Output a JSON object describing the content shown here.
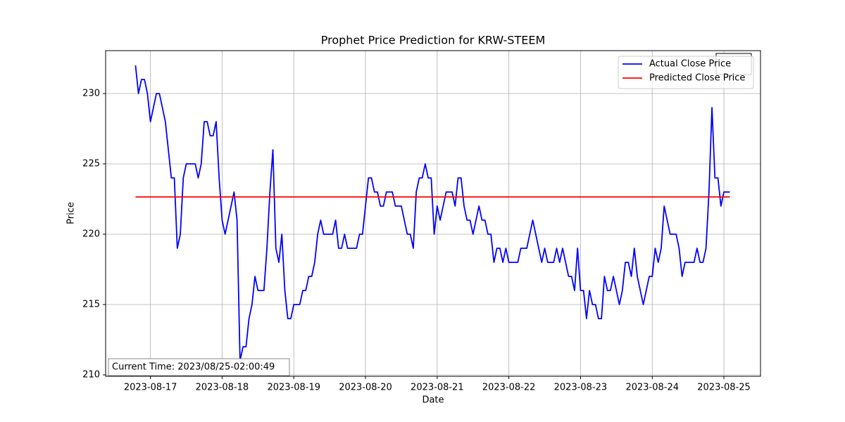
{
  "chart_data": {
    "type": "line",
    "title": "Prophet Price Prediction for KRW-STEEM",
    "x_label": "Date",
    "y_label": "Price",
    "annotation": "Current Time: 2023/08/25-02:00:49",
    "legend": "upper right",
    "grid": true,
    "xlim": [
      "2023-08-16 09:00",
      "2023-08-25 12:15"
    ],
    "xticks": [
      "2023-08-17",
      "2023-08-18",
      "2023-08-19",
      "2023-08-20",
      "2023-08-21",
      "2023-08-22",
      "2023-08-23",
      "2023-08-24",
      "2023-08-25"
    ],
    "ylim": [
      209.9,
      233.05
    ],
    "yticks": [
      210,
      215,
      220,
      225,
      230
    ],
    "series": [
      {
        "name": "Actual Close Price",
        "color": "#0000ff",
        "x": [
          "2023-08-16 19:00",
          "2023-08-16 20:00",
          "2023-08-16 21:00",
          "2023-08-16 22:00",
          "2023-08-16 23:00",
          "2023-08-17 00:00",
          "2023-08-17 02:00",
          "2023-08-17 03:00",
          "2023-08-17 05:00",
          "2023-08-17 07:00",
          "2023-08-17 08:00",
          "2023-08-17 09:00",
          "2023-08-17 10:00",
          "2023-08-17 11:00",
          "2023-08-17 12:00",
          "2023-08-17 15:00",
          "2023-08-17 16:00",
          "2023-08-17 17:00",
          "2023-08-17 18:00",
          "2023-08-17 19:00",
          "2023-08-17 20:00",
          "2023-08-17 21:00",
          "2023-08-17 22:00",
          "2023-08-17 23:00",
          "2023-08-18 00:00",
          "2023-08-18 01:00",
          "2023-08-18 04:00",
          "2023-08-18 05:00",
          "2023-08-18 06:00",
          "2023-08-18 07:00",
          "2023-08-18 08:00",
          "2023-08-18 09:00",
          "2023-08-18 10:00",
          "2023-08-18 11:00",
          "2023-08-18 12:00",
          "2023-08-18 14:00",
          "2023-08-18 15:00",
          "2023-08-18 16:00",
          "2023-08-18 17:00",
          "2023-08-18 18:00",
          "2023-08-18 19:00",
          "2023-08-18 20:00",
          "2023-08-18 21:00",
          "2023-08-18 22:00",
          "2023-08-18 23:00",
          "2023-08-19 00:00",
          "2023-08-19 02:00",
          "2023-08-19 03:00",
          "2023-08-19 04:00",
          "2023-08-19 05:00",
          "2023-08-19 06:00",
          "2023-08-19 07:00",
          "2023-08-19 08:00",
          "2023-08-19 09:00",
          "2023-08-19 10:00",
          "2023-08-19 13:00",
          "2023-08-19 14:00",
          "2023-08-19 15:00",
          "2023-08-19 16:00",
          "2023-08-19 17:00",
          "2023-08-19 18:00",
          "2023-08-19 21:00",
          "2023-08-19 22:00",
          "2023-08-19 23:00",
          "2023-08-20 00:00",
          "2023-08-20 01:00",
          "2023-08-20 02:00",
          "2023-08-20 03:00",
          "2023-08-20 04:00",
          "2023-08-20 05:00",
          "2023-08-20 06:00",
          "2023-08-20 07:00",
          "2023-08-20 09:00",
          "2023-08-20 10:00",
          "2023-08-20 12:00",
          "2023-08-20 13:00",
          "2023-08-20 14:00",
          "2023-08-20 15:00",
          "2023-08-20 16:00",
          "2023-08-20 17:00",
          "2023-08-20 18:00",
          "2023-08-20 19:00",
          "2023-08-20 20:00",
          "2023-08-20 21:00",
          "2023-08-20 22:00",
          "2023-08-20 23:00",
          "2023-08-21 00:00",
          "2023-08-21 01:00",
          "2023-08-21 03:00",
          "2023-08-21 05:00",
          "2023-08-21 06:00",
          "2023-08-21 07:00",
          "2023-08-21 08:00",
          "2023-08-21 09:00",
          "2023-08-21 10:00",
          "2023-08-21 11:00",
          "2023-08-21 12:00",
          "2023-08-21 14:00",
          "2023-08-21 15:00",
          "2023-08-21 16:00",
          "2023-08-21 17:00",
          "2023-08-21 18:00",
          "2023-08-21 19:00",
          "2023-08-21 20:00",
          "2023-08-21 21:00",
          "2023-08-21 22:00",
          "2023-08-21 23:00",
          "2023-08-22 00:00",
          "2023-08-22 03:00",
          "2023-08-22 04:00",
          "2023-08-22 06:00",
          "2023-08-22 08:00",
          "2023-08-22 11:00",
          "2023-08-22 12:00",
          "2023-08-22 13:00",
          "2023-08-22 15:00",
          "2023-08-22 16:00",
          "2023-08-22 17:00",
          "2023-08-22 18:00",
          "2023-08-22 20:00",
          "2023-08-22 21:00",
          "2023-08-22 22:00",
          "2023-08-22 23:00",
          "2023-08-23 00:00",
          "2023-08-23 01:00",
          "2023-08-23 02:00",
          "2023-08-23 03:00",
          "2023-08-23 04:00",
          "2023-08-23 05:00",
          "2023-08-23 06:00",
          "2023-08-23 07:00",
          "2023-08-23 08:00",
          "2023-08-23 09:00",
          "2023-08-23 10:00",
          "2023-08-23 11:00",
          "2023-08-23 13:00",
          "2023-08-23 14:00",
          "2023-08-23 15:00",
          "2023-08-23 16:00",
          "2023-08-23 17:00",
          "2023-08-23 18:00",
          "2023-08-23 19:00",
          "2023-08-23 21:00",
          "2023-08-23 23:00",
          "2023-08-24 00:00",
          "2023-08-24 01:00",
          "2023-08-24 02:00",
          "2023-08-24 03:00",
          "2023-08-24 04:00",
          "2023-08-24 06:00",
          "2023-08-24 08:00",
          "2023-08-24 09:00",
          "2023-08-24 10:00",
          "2023-08-24 11:00",
          "2023-08-24 14:00",
          "2023-08-24 15:00",
          "2023-08-24 16:00",
          "2023-08-24 17:00",
          "2023-08-24 18:00",
          "2023-08-24 19:00",
          "2023-08-24 20:00",
          "2023-08-24 21:00",
          "2023-08-24 22:00",
          "2023-08-24 23:00",
          "2023-08-25 00:00",
          "2023-08-25 02:00"
        ],
        "values": [
          232,
          230,
          231,
          231,
          230,
          228,
          230,
          230,
          228,
          224,
          224,
          219,
          220,
          224,
          225,
          225,
          224,
          225,
          228,
          228,
          227,
          227,
          228,
          224,
          221,
          220,
          223,
          221,
          211,
          212,
          212,
          214,
          215,
          217,
          216,
          216,
          219,
          223,
          226,
          219,
          218,
          220,
          216,
          214,
          214,
          215,
          215,
          216,
          216,
          217,
          217,
          218,
          220,
          221,
          220,
          220,
          221,
          219,
          219,
          220,
          219,
          219,
          220,
          220,
          222,
          224,
          224,
          223,
          223,
          222,
          222,
          223,
          223,
          222,
          222,
          221,
          220,
          220,
          219,
          223,
          224,
          224,
          225,
          224,
          224,
          220,
          222,
          221,
          223,
          223,
          222,
          224,
          224,
          222,
          221,
          221,
          220,
          222,
          221,
          221,
          220,
          220,
          218,
          219,
          219,
          218,
          219,
          218,
          218,
          219,
          219,
          221,
          218,
          219,
          218,
          218,
          219,
          218,
          219,
          217,
          217,
          216,
          219,
          216,
          216,
          214,
          216,
          215,
          215,
          214,
          214,
          217,
          216,
          216,
          217,
          215,
          216,
          218,
          218,
          217,
          219,
          217,
          215,
          217,
          217,
          219,
          218,
          219,
          222,
          220,
          220,
          219,
          217,
          218,
          218,
          219,
          218,
          218,
          219,
          223,
          229,
          224,
          224,
          222,
          223,
          223
        ]
      },
      {
        "name": "Predicted Close Price",
        "color": "#ff0000",
        "x": [
          "2023-08-16 19:00",
          "2023-08-25 02:00"
        ],
        "values": [
          222.65,
          222.65
        ]
      }
    ]
  }
}
